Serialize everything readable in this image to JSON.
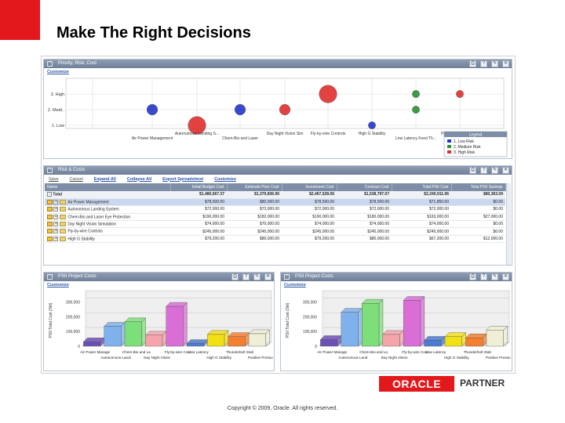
{
  "slide": {
    "title": "Make The Right Decisions",
    "copyright": "Copyright © 2009, Oracle. All rights reserved.",
    "logo_text": "ORACLE",
    "partner_text": "PARTNER"
  },
  "colors": {
    "brand_red": "#e3181d",
    "header_blue": "#7e8ea6"
  },
  "priority": {
    "title": "Priority, Risk, Cost",
    "customize": "Customize",
    "y_labels": [
      "3. High",
      "2. Medi..",
      "1. Low"
    ],
    "x_labels_top": [
      "Autonomous Landing S...",
      "Day Night Vision Sim",
      "Fly-by-wire Controls",
      "High G Stability",
      "Positive Pressure R..."
    ],
    "x_labels_bottom": [
      "Air Power Management",
      "Chem-Bio and Laser",
      "Low Latency Feed Th..."
    ],
    "legend_title": "Legend",
    "legend": [
      {
        "label": "1. Low Risk",
        "color": "#2436c9"
      },
      {
        "label": "2. Medium Risk",
        "color": "#2a9138"
      },
      {
        "label": "3. High Risk",
        "color": "#e02e2e"
      }
    ]
  },
  "chart_data": [
    {
      "type": "scatter",
      "title": "Priority, Risk, Cost",
      "x": [
        "Air Power Management",
        "Autonomous Landing S...",
        "Chem-Bio and Laser",
        "Day Night Vision Sim",
        "Fly-by-wire Controls",
        "High G Stability",
        "Low Latency Feed Th...",
        "Positive Pressure R..."
      ],
      "y_categories": [
        "1. Low",
        "2. Medi..",
        "3. High"
      ],
      "points": [
        {
          "x": "Air Power Management",
          "y": "2. Medi..",
          "risk": "1. Low Risk",
          "size": 2
        },
        {
          "x": "Autonomous Landing S...",
          "y": "1. Low",
          "risk": "3. High Risk",
          "size": 4
        },
        {
          "x": "Chem-Bio and Laser",
          "y": "2. Medi..",
          "risk": "1. Low Risk",
          "size": 2
        },
        {
          "x": "Day Night Vision Sim",
          "y": "2. Medi..",
          "risk": "3. High Risk",
          "size": 2
        },
        {
          "x": "Fly-by-wire Controls",
          "y": "3. High",
          "risk": "3. High Risk",
          "size": 4
        },
        {
          "x": "High G Stability",
          "y": "1. Low",
          "risk": "1. Low Risk",
          "size": 1
        },
        {
          "x": "Low Latency Feed Th...",
          "y": "3. High",
          "risk": "2. Medium Risk",
          "size": 1
        },
        {
          "x": "Low Latency Feed Th...",
          "y": "2. Medi..",
          "risk": "2. Medium Risk",
          "size": 1
        },
        {
          "x": "Positive Pressure R...",
          "y": "3. High",
          "risk": "3. High Risk",
          "size": 1
        }
      ]
    },
    {
      "type": "bar",
      "title": "PSII Project Costs",
      "ylabel": "PSII Total Cost (Skt)",
      "yticks": [
        0,
        100000,
        200000,
        300000
      ],
      "ytick_labels": [
        "0",
        "100,000",
        "200,000",
        "300,000"
      ],
      "ylim": [
        0,
        350000
      ],
      "categories": [
        "Air Power Manage",
        "Autonomous Landi",
        "Chem-Bio and La",
        "Day Night Vision",
        "Fly-by-wire Cont",
        "Low Latency",
        "High G Stability",
        "Thunderbolt Stab",
        "Positive Pressu"
      ],
      "values": [
        30000,
        135000,
        165000,
        75000,
        270000,
        18000,
        80000,
        65000,
        85000
      ],
      "colors": [
        "#6d50b5",
        "#7fb2ec",
        "#7ddf7a",
        "#f5a4aa",
        "#d86ed6",
        "#4c7bd2",
        "#f2e016",
        "#f47f30",
        "#efefd7"
      ]
    },
    {
      "type": "bar",
      "title": "PSII Project Costs",
      "ylabel": "PSII Total Cost (Skt)",
      "yticks": [
        0,
        100000,
        200000,
        300000
      ],
      "ytick_labels": [
        "0",
        "100,000",
        "200,000",
        "300,000"
      ],
      "ylim": [
        0,
        350000
      ],
      "categories": [
        "Air Power Manage",
        "Autonomous Land",
        "Chem-Bio and La",
        "Day Night Vision",
        "Fly-by-wire Cont",
        "Low Latency",
        "High G Stability",
        "Thunderbolt Stab",
        "Positive Pressu"
      ],
      "values": [
        45000,
        230000,
        290000,
        80000,
        310000,
        40000,
        65000,
        57000,
        110000
      ],
      "colors": [
        "#6d50b5",
        "#7fb2ec",
        "#7ddf7a",
        "#f5a4aa",
        "#d86ed6",
        "#4c7bd2",
        "#f2e016",
        "#f47f30",
        "#efefd7"
      ]
    }
  ],
  "risk": {
    "title": "Risk & Costs",
    "tabs": [
      "Save",
      "Cancel",
      "Expand All",
      "Collapse All",
      "Export Spreadsheet",
      "Customize"
    ],
    "columns": [
      "Name",
      "Initial Budget Cost",
      "Estimate Prior Cost",
      "Investment Cost",
      "Contract Cost",
      "Total PSII Cost",
      "Total PSII Savings"
    ],
    "total_row": [
      "Total",
      "$1,480,667.37",
      "$1,379,836.96",
      "$2,467,528.06",
      "$1,538,797.07",
      "$2,240,911.96",
      "$80,363.09"
    ],
    "rows": [
      [
        "Air Power Management",
        "$78,500.00",
        "$80,000.00",
        "$78,500.00",
        "$78,500.00",
        "$71,850.00",
        "$0.00"
      ],
      [
        "Autonomous Landing System",
        "$72,000.00",
        "$73,000.00",
        "$72,000.00",
        "$72,000.00",
        "$72,000.00",
        "$0.00"
      ],
      [
        "Chem-Bio and Laser Eye Protection",
        "$190,000.00",
        "$182,000.00",
        "$190,000.00",
        "$180,000.00",
        "$163,000.00",
        "$27,000.00"
      ],
      [
        "Day Night Vision Simulation",
        "$74,000.00",
        "$70,000.00",
        "$74,000.00",
        "$74,000.00",
        "$74,000.00",
        "$0.00"
      ],
      [
        "Fly-by-wire Controls",
        "$245,000.00",
        "$245,000.00",
        "$245,000.00",
        "$245,000.00",
        "$245,000.00",
        "$0.00"
      ],
      [
        "High G Stability",
        "$79,200.00",
        "$80,000.00",
        "$79,200.00",
        "$80,000.00",
        "$67,200.00",
        "$12,000.00"
      ]
    ]
  },
  "cost_left": {
    "title": "PSII Project Costs",
    "customize": "Customize"
  },
  "cost_right": {
    "title": "PSII Project Costs",
    "customize": "Customize"
  },
  "left_bar_labels": {
    "top": [
      "Air Power Manage",
      "Chem-Bio and La",
      "Fly-by-wire Cont",
      "Low Latency",
      "Thunderbolt Stab"
    ],
    "bottom": [
      "Autonomous Landi",
      "Day Night Vision",
      "High G Stability",
      "Positive Pressu"
    ]
  },
  "right_bar_labels": {
    "top": [
      "Air Power Manage",
      "Chem-Bio and La",
      "Fly-by-wire Cont",
      "Low Latency",
      "Thunderbolt Stab"
    ],
    "bottom": [
      "Autonomous Land",
      "Day Night Vision",
      "High G Stability",
      "Positive Pressu"
    ]
  }
}
